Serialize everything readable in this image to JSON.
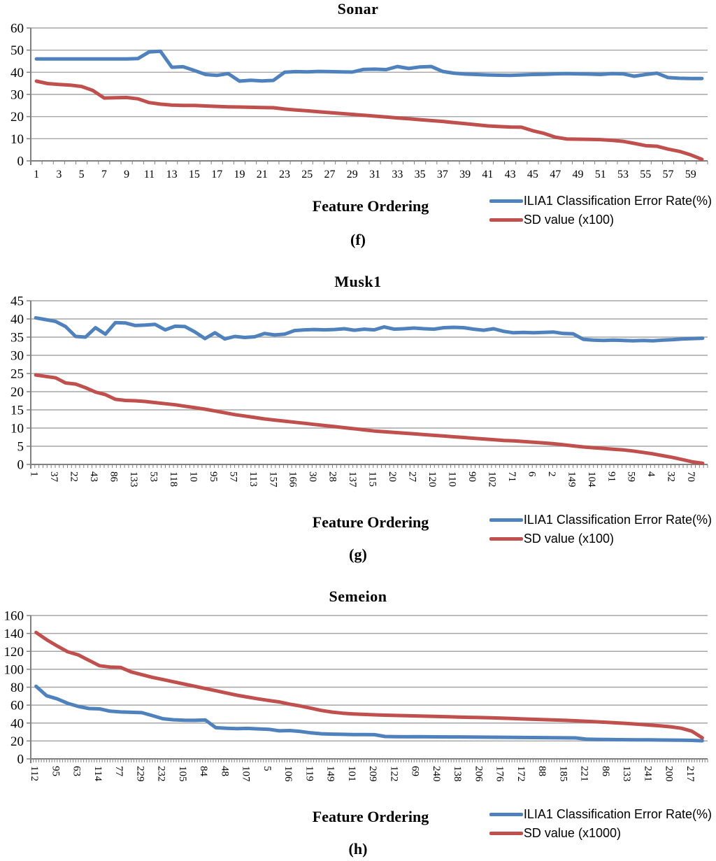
{
  "styles": {
    "blue": "#4F81BD",
    "red": "#C0504D",
    "grid_color": "#A6A6A6",
    "axis_color": "#808080",
    "text_color": "#000000"
  },
  "chart_data": [
    {
      "id": "sonar",
      "type": "line",
      "title": "Sonar",
      "caption": "(f)",
      "xlabel": "Feature Ordering",
      "ylim": [
        0,
        60
      ],
      "ystep": 10,
      "grid": true,
      "legend_position": "bottom-right",
      "yticklabels": [
        "60",
        "50",
        "40",
        "30",
        "20",
        "10",
        "0"
      ],
      "xticklabels": [
        "1",
        "3",
        "5",
        "7",
        "9",
        "11",
        "13",
        "15",
        "17",
        "19",
        "21",
        "23",
        "25",
        "27",
        "29",
        "31",
        "33",
        "35",
        "37",
        "39",
        "41",
        "43",
        "45",
        "47",
        "49",
        "51",
        "53",
        "55",
        "57",
        "59"
      ],
      "series": [
        {
          "name": "ILIA1 Classification Error Rate(%)",
          "color": "#4F81BD",
          "values": [
            46,
            46,
            46,
            46,
            46,
            46,
            46,
            46,
            46,
            46.2,
            49.2,
            49.5,
            42.3,
            42.5,
            40.8,
            39,
            38.6,
            39.4,
            36,
            36.4,
            36.1,
            36.3,
            40,
            40.3,
            40.2,
            40.4,
            40.3,
            40.2,
            40.1,
            41.3,
            41.4,
            41.2,
            42.6,
            41.7,
            42.4,
            42.6,
            40.4,
            39.6,
            39.2,
            39,
            38.8,
            38.7,
            38.6,
            38.8,
            39,
            39.1,
            39.3,
            39.4,
            39.3,
            39.2,
            39,
            39.4,
            39.3,
            38.2,
            39,
            39.6,
            37.6,
            37.3,
            37.2,
            37.2
          ]
        },
        {
          "name": "SD value (x100)",
          "color": "#C0504D",
          "values": [
            36,
            34.9,
            34.5,
            34.2,
            33.6,
            31.8,
            28.4,
            28.5,
            28.6,
            28,
            26.3,
            25.6,
            25.2,
            25,
            25,
            24.8,
            24.6,
            24.4,
            24.3,
            24.2,
            24.1,
            24,
            23.4,
            23,
            22.6,
            22.2,
            21.8,
            21.4,
            21,
            20.6,
            20.2,
            19.8,
            19.4,
            19,
            18.6,
            18.2,
            17.8,
            17.3,
            16.8,
            16.3,
            15.8,
            15.5,
            15.3,
            15.2,
            13.6,
            12.4,
            10.7,
            9.9,
            9.8,
            9.7,
            9.6,
            9.3,
            8.8,
            7.9,
            6.9,
            6.6,
            5.3,
            4.3,
            2.7,
            0.7
          ]
        }
      ]
    },
    {
      "id": "musk1",
      "type": "line",
      "title": "Musk1",
      "caption": "(g)",
      "xlabel": "Feature Ordering",
      "ylim": [
        0,
        45
      ],
      "ystep": 5,
      "grid": true,
      "legend_position": "bottom-right",
      "yticklabels": [
        "45",
        "40",
        "35",
        "30",
        "25",
        "20",
        "15",
        "10",
        "5",
        "0"
      ],
      "xticklabels": [
        "1",
        "37",
        "22",
        "43",
        "86",
        "133",
        "53",
        "118",
        "10",
        "95",
        "57",
        "113",
        "157",
        "166",
        "30",
        "28",
        "137",
        "115",
        "20",
        "27",
        "120",
        "110",
        "90",
        "102",
        "71",
        "6",
        "2",
        "149",
        "104",
        "91",
        "59",
        "4",
        "32",
        "70"
      ],
      "series": [
        {
          "name": "ILIA1 Classification Error Rate(%)",
          "color": "#4F81BD",
          "values": [
            40.3,
            39.8,
            39.3,
            37.9,
            35.2,
            35,
            37.6,
            35.8,
            39,
            38.9,
            38.2,
            38.3,
            38.5,
            37,
            38,
            37.9,
            36.4,
            34.6,
            36.2,
            34.5,
            35.2,
            34.9,
            35.1,
            36,
            35.6,
            35.8,
            36.8,
            37,
            37.1,
            37,
            37.1,
            37.3,
            36.9,
            37.2,
            37,
            37.8,
            37.2,
            37.3,
            37.5,
            37.3,
            37.2,
            37.6,
            37.7,
            37.6,
            37.2,
            36.9,
            37.3,
            36.6,
            36.2,
            36.3,
            36.2,
            36.3,
            36.4,
            36,
            35.9,
            34.4,
            34.2,
            34.1,
            34.2,
            34.1,
            34,
            34.1,
            34,
            34.2,
            34.3,
            34.5,
            34.6,
            34.7
          ]
        },
        {
          "name": "SD value (x100)",
          "color": "#C0504D",
          "values": [
            24.6,
            24.2,
            23.8,
            22.4,
            22.1,
            21.1,
            19.9,
            19.2,
            17.9,
            17.6,
            17.5,
            17.3,
            17,
            16.7,
            16.4,
            16,
            15.6,
            15.2,
            14.7,
            14.2,
            13.7,
            13.3,
            12.9,
            12.5,
            12.2,
            11.9,
            11.6,
            11.3,
            11,
            10.7,
            10.4,
            10.1,
            9.8,
            9.5,
            9.2,
            9,
            8.8,
            8.6,
            8.4,
            8.2,
            8,
            7.8,
            7.6,
            7.4,
            7.2,
            7,
            6.8,
            6.6,
            6.5,
            6.3,
            6.1,
            5.9,
            5.7,
            5.4,
            5.1,
            4.8,
            4.6,
            4.4,
            4.2,
            4,
            3.7,
            3.3,
            2.9,
            2.4,
            1.9,
            1.3,
            0.7,
            0.3
          ]
        }
      ]
    },
    {
      "id": "semeion",
      "type": "line",
      "title": "Semeion",
      "caption": "(h)",
      "xlabel": "Feature Ordering",
      "ylim": [
        0,
        160
      ],
      "ystep": 20,
      "grid": true,
      "legend_position": "bottom-right",
      "yticklabels": [
        "160",
        "140",
        "120",
        "100",
        "80",
        "60",
        "40",
        "20",
        "0"
      ],
      "xticklabels": [
        "112",
        "95",
        "63",
        "114",
        "77",
        "229",
        "232",
        "105",
        "84",
        "48",
        "107",
        "5",
        "106",
        "119",
        "149",
        "101",
        "209",
        "122",
        "69",
        "240",
        "138",
        "206",
        "176",
        "172",
        "88",
        "185",
        "221",
        "86",
        "133",
        "241",
        "200",
        "217"
      ],
      "series": [
        {
          "name": "ILIA1 Classification Error Rate(%)",
          "color": "#4F81BD",
          "values": [
            81,
            70.5,
            67,
            62,
            58.5,
            56.2,
            55.8,
            53.2,
            52.4,
            52,
            51.6,
            48.3,
            44.8,
            43.6,
            43.2,
            43,
            43.4,
            34.8,
            34.2,
            33.8,
            34,
            33.5,
            33,
            31.3,
            31.6,
            30.6,
            29,
            28,
            27.6,
            27.4,
            27.2,
            27.1,
            27,
            25,
            24.8,
            24.7,
            24.8,
            24.7,
            24.6,
            24.5,
            24.5,
            24.4,
            24.3,
            24.2,
            24.1,
            24,
            23.9,
            23.8,
            23.7,
            23.6,
            23.5,
            23.4,
            22.1,
            21.8,
            21.6,
            21.5,
            21.4,
            21.3,
            21.2,
            21.1,
            21,
            20.9,
            20.7,
            20.2
          ]
        },
        {
          "name": "SD value (x1000)",
          "color": "#C0504D",
          "values": [
            141,
            133,
            126,
            119.5,
            116,
            110,
            104,
            102.5,
            102,
            97,
            94,
            91,
            88.5,
            86,
            83.5,
            81,
            78.5,
            76,
            73.5,
            71,
            69,
            67,
            65.2,
            63.5,
            61,
            59,
            56.5,
            54,
            52.2,
            51,
            50.2,
            49.6,
            49.2,
            48.8,
            48.5,
            48.2,
            47.9,
            47.6,
            47.3,
            47,
            46.7,
            46.4,
            46.1,
            45.8,
            45.4,
            45,
            44.6,
            44.2,
            43.8,
            43.4,
            43,
            42.5,
            42,
            41.4,
            40.8,
            40.1,
            39.4,
            38.6,
            37.8,
            36.9,
            35.8,
            34.2,
            31,
            23.5
          ]
        }
      ]
    }
  ]
}
